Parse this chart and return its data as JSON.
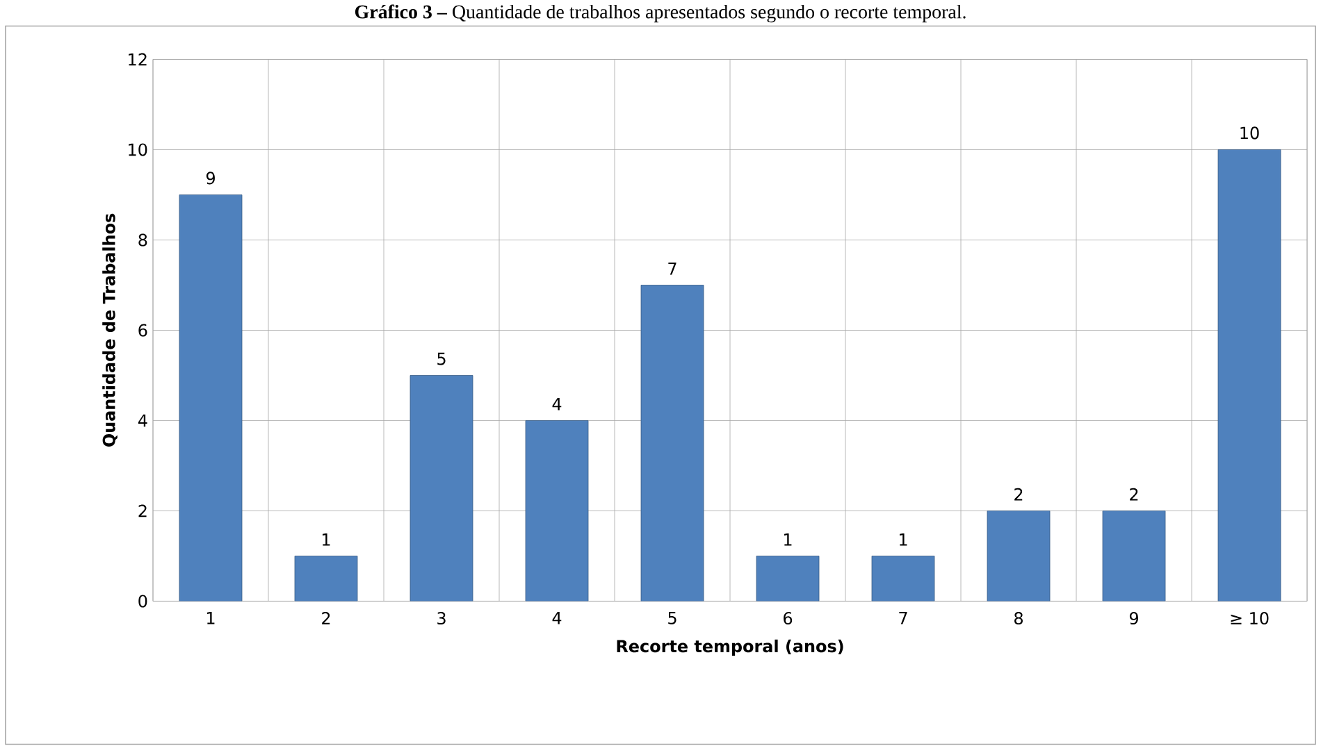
{
  "chart_data": {
    "type": "bar",
    "title": "**Gráfico 3 –** Quantidade de trabalhos apresentados segundo o recorte temporal.",
    "xlabel": "Recorte temporal (anos)",
    "ylabel": "Quantidade de Trabalhos",
    "categories": [
      "1",
      "2",
      "3",
      "4",
      "5",
      "6",
      "7",
      "8",
      "9",
      "≥ 10"
    ],
    "values": [
      9,
      1,
      5,
      4,
      7,
      1,
      1,
      2,
      2,
      10
    ],
    "color": "#4f81bd",
    "ylim": [
      0,
      12
    ],
    "yticks": [
      0,
      2,
      4,
      6,
      8,
      10,
      12
    ],
    "grid": true,
    "data_labels": true
  }
}
